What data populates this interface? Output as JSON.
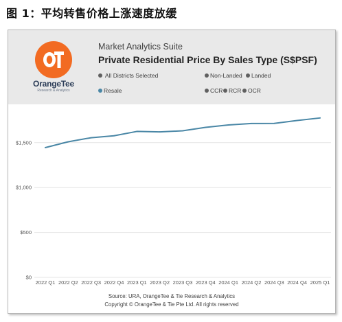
{
  "figure_title": "图 1：平均转售价格上涨速度放缓",
  "logo": {
    "name": "OrangeTee",
    "tagline": "Research & Analytics",
    "color": "#f26b22",
    "icon": "orangetee-ot-logo"
  },
  "header": {
    "suite": "Market Analytics Suite",
    "title": "Private Residential Price By Sales Type (S$PSF)"
  },
  "filters": {
    "district": "All Districts Selected",
    "sales_types": [
      "Non-Landed",
      "Landed",
      "Resale"
    ],
    "regions": [
      "CCR",
      "RCR",
      "OCR"
    ]
  },
  "chart_data": {
    "type": "line",
    "title": "Private Residential Price By Sales Type (S$PSF)",
    "categories": [
      "2022 Q1",
      "2022 Q2",
      "2022 Q3",
      "2022 Q4",
      "2023 Q1",
      "2023 Q2",
      "2023 Q3",
      "2023 Q4",
      "2024 Q1",
      "2024 Q2",
      "2024 Q3",
      "2024 Q4",
      "2025 Q1"
    ],
    "series": [
      {
        "name": "Resale",
        "color": "#4a87a6",
        "values": [
          1445,
          1510,
          1555,
          1577,
          1625,
          1620,
          1632,
          1670,
          1697,
          1713,
          1714,
          1747,
          1775
        ]
      }
    ],
    "y_ticks": [
      0,
      500,
      1000,
      1500
    ],
    "y_tick_labels": [
      "$0",
      "$500",
      "$1,000",
      "$1,500"
    ],
    "ylim": [
      0,
      1850
    ],
    "grid": "horizontal"
  },
  "footer": {
    "source": "Source: URA, OrangeTee & Tie Research & Analytics",
    "copyright": "Copyright © OrangeTee & Tie Pte Ltd. All rights reserved"
  }
}
